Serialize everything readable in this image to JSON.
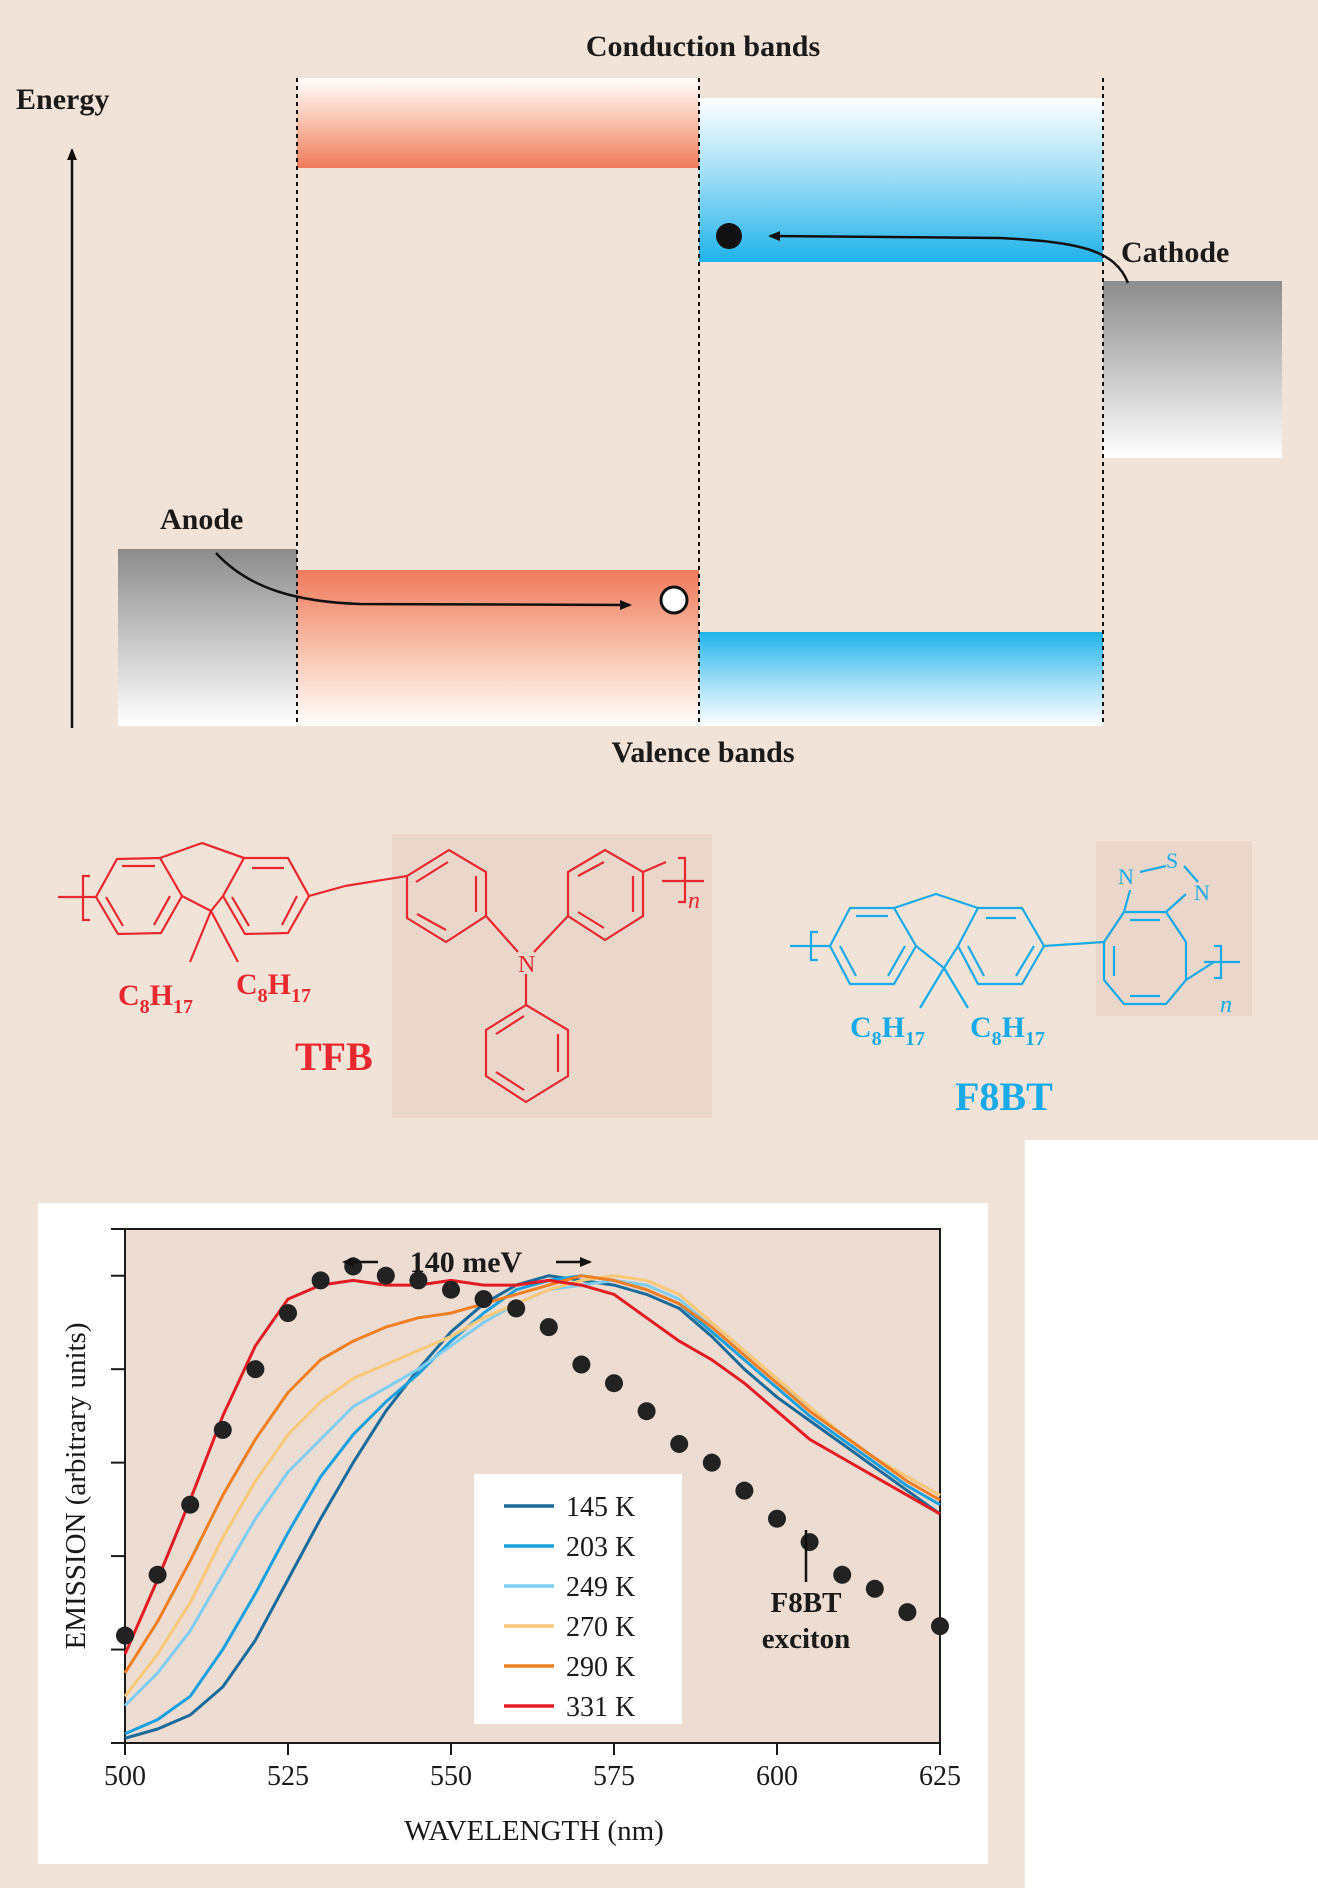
{
  "band_diagram": {
    "conduction_label": "Conduction bands",
    "valence_label": "Valence bands",
    "energy_label": "Energy",
    "anode_label": "Anode",
    "cathode_label": "Cathode"
  },
  "molecules": {
    "tfb": {
      "name": "TFB",
      "sub_left": "C",
      "sub_left_n1": "8",
      "sub_left_h": "H",
      "sub_left_n2": "17",
      "n": "n",
      "atom_n": "N"
    },
    "f8bt": {
      "name": "F8BT",
      "n": "n",
      "atom_n": "N",
      "atom_s": "S"
    }
  },
  "colors": {
    "background": "#f2e3d8",
    "tfb_red": "#e8282f",
    "f8bt_blue": "#1aabe6",
    "shade_box": "#ead6ca",
    "plot_bg": "#ecdcd2"
  },
  "chart_data": {
    "type": "line",
    "xlabel": "WAVELENGTH (nm)",
    "ylabel": "EMISSION (arbitrary units)",
    "xlim": [
      500,
      625
    ],
    "ylim": [
      0,
      1.1
    ],
    "x_ticks": [
      "500",
      "525",
      "550",
      "575",
      "600",
      "625"
    ],
    "annotation": "140 meV",
    "exciton_label_line1": "F8BT",
    "exciton_label_line2": "exciton",
    "series": [
      {
        "name": "145 K",
        "color": "#1a6a9a",
        "x": [
          500,
          505,
          510,
          515,
          520,
          525,
          530,
          535,
          540,
          545,
          550,
          555,
          560,
          565,
          570,
          575,
          580,
          585,
          590,
          595,
          600,
          605,
          610,
          615,
          620,
          625
        ],
        "y": [
          0.01,
          0.03,
          0.06,
          0.12,
          0.22,
          0.35,
          0.48,
          0.6,
          0.71,
          0.8,
          0.88,
          0.94,
          0.98,
          1.0,
          0.99,
          0.98,
          0.96,
          0.93,
          0.87,
          0.8,
          0.74,
          0.69,
          0.64,
          0.59,
          0.54,
          0.49
        ]
      },
      {
        "name": "203 K",
        "color": "#1aa0de",
        "x": [
          500,
          505,
          510,
          515,
          520,
          525,
          530,
          535,
          540,
          545,
          550,
          555,
          560,
          565,
          570,
          575,
          580,
          585,
          590,
          595,
          600,
          605,
          610,
          615,
          620,
          625
        ],
        "y": [
          0.02,
          0.05,
          0.1,
          0.2,
          0.32,
          0.45,
          0.57,
          0.66,
          0.73,
          0.79,
          0.86,
          0.92,
          0.97,
          0.99,
          1.0,
          0.99,
          0.97,
          0.94,
          0.88,
          0.82,
          0.76,
          0.7,
          0.65,
          0.6,
          0.55,
          0.51
        ]
      },
      {
        "name": "249 K",
        "color": "#7fcdf0",
        "x": [
          500,
          505,
          510,
          515,
          520,
          525,
          530,
          535,
          540,
          545,
          550,
          555,
          560,
          565,
          570,
          575,
          580,
          585,
          590,
          595,
          600,
          605,
          610,
          615,
          620,
          625
        ],
        "y": [
          0.08,
          0.15,
          0.24,
          0.36,
          0.48,
          0.58,
          0.65,
          0.72,
          0.76,
          0.8,
          0.85,
          0.9,
          0.94,
          0.97,
          0.98,
          0.99,
          0.98,
          0.95,
          0.89,
          0.83,
          0.77,
          0.72,
          0.66,
          0.61,
          0.57,
          0.53
        ]
      },
      {
        "name": "270 K",
        "color": "#f8c878",
        "x": [
          500,
          505,
          510,
          515,
          520,
          525,
          530,
          535,
          540,
          545,
          550,
          555,
          560,
          565,
          570,
          575,
          580,
          585,
          590,
          595,
          600,
          605,
          610,
          615,
          620,
          625
        ],
        "y": [
          0.1,
          0.19,
          0.3,
          0.44,
          0.56,
          0.66,
          0.73,
          0.78,
          0.81,
          0.84,
          0.87,
          0.91,
          0.94,
          0.97,
          0.99,
          1.0,
          0.99,
          0.96,
          0.9,
          0.84,
          0.78,
          0.72,
          0.66,
          0.61,
          0.57,
          0.53
        ]
      },
      {
        "name": "290 K",
        "color": "#f07e22",
        "x": [
          500,
          505,
          510,
          515,
          520,
          525,
          530,
          535,
          540,
          545,
          550,
          555,
          560,
          565,
          570,
          575,
          580,
          585,
          590,
          595,
          600,
          605,
          610,
          615,
          620,
          625
        ],
        "y": [
          0.15,
          0.26,
          0.39,
          0.53,
          0.65,
          0.75,
          0.82,
          0.86,
          0.89,
          0.91,
          0.92,
          0.94,
          0.96,
          0.98,
          1.0,
          0.99,
          0.97,
          0.94,
          0.89,
          0.83,
          0.77,
          0.71,
          0.66,
          0.61,
          0.56,
          0.52
        ]
      },
      {
        "name": "331 K",
        "color": "#e31c23",
        "x": [
          500,
          505,
          510,
          515,
          520,
          525,
          530,
          535,
          540,
          545,
          550,
          555,
          560,
          565,
          570,
          575,
          580,
          585,
          590,
          595,
          600,
          605,
          610,
          615,
          620,
          625
        ],
        "y": [
          0.19,
          0.35,
          0.52,
          0.7,
          0.85,
          0.95,
          0.98,
          0.99,
          0.98,
          0.98,
          0.99,
          0.98,
          0.98,
          0.99,
          0.98,
          0.96,
          0.91,
          0.86,
          0.82,
          0.77,
          0.71,
          0.65,
          0.61,
          0.57,
          0.53,
          0.49
        ]
      },
      {
        "name": "F8BT exciton",
        "color": "#222222",
        "style": "dots",
        "x": [
          500,
          505,
          510,
          515,
          520,
          525,
          530,
          535,
          540,
          545,
          550,
          555,
          560,
          565,
          570,
          575,
          580,
          585,
          590,
          595,
          600,
          605,
          610,
          615,
          620,
          625
        ],
        "y": [
          0.23,
          0.36,
          0.51,
          0.67,
          0.8,
          0.92,
          0.99,
          1.02,
          1.0,
          0.99,
          0.97,
          0.95,
          0.93,
          0.89,
          0.81,
          0.77,
          0.71,
          0.64,
          0.6,
          0.54,
          0.48,
          0.43,
          0.36,
          0.33,
          0.28,
          0.25
        ]
      }
    ],
    "legend_placement": "center-right"
  }
}
